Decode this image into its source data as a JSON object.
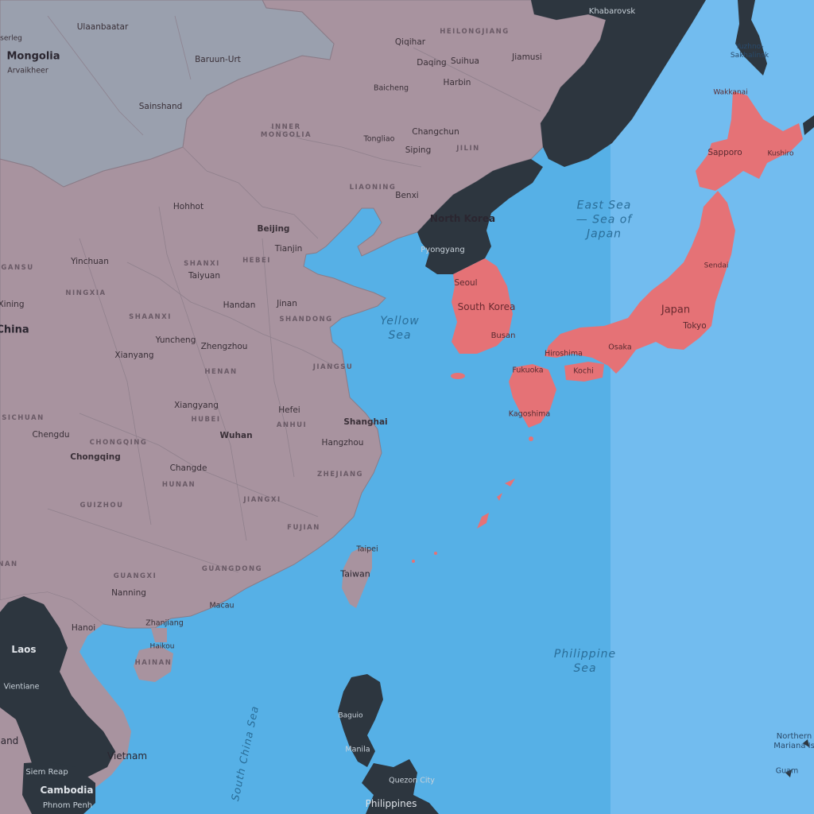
{
  "colors": {
    "sea": "#56b0e6",
    "sea_far": "#72bcef",
    "china": "#a8939f",
    "mongolia": "#9aa0ae",
    "dark_country": "#2d363f",
    "highlight": "#e57276",
    "border": "#8a7c88"
  },
  "labels": {
    "countries": [
      {
        "id": "mongolia",
        "text": "Mongolia"
      },
      {
        "id": "china",
        "text": "China"
      },
      {
        "id": "north-korea",
        "text": "North Korea"
      },
      {
        "id": "south-korea",
        "text": "South Korea"
      },
      {
        "id": "japan",
        "text": "Japan"
      },
      {
        "id": "taiwan",
        "text": "Taiwan"
      },
      {
        "id": "laos",
        "text": "Laos"
      },
      {
        "id": "vietnam",
        "text": "Vietnam"
      },
      {
        "id": "cambodia",
        "text": "Cambodia"
      },
      {
        "id": "thailand",
        "text": "and"
      },
      {
        "id": "philippines",
        "text": "Philippines"
      },
      {
        "id": "northern-mariana",
        "text": "Northern\nMariana Is"
      }
    ],
    "provinces": [
      {
        "id": "heilongjiang",
        "text": "HEILONGJIANG"
      },
      {
        "id": "inner-mongolia",
        "text": "INNER\nMONGOLIA"
      },
      {
        "id": "jilin",
        "text": "JILIN"
      },
      {
        "id": "liaoning",
        "text": "LIAONING"
      },
      {
        "id": "gansu",
        "text": "GANSU"
      },
      {
        "id": "ningxia",
        "text": "NINGXIA"
      },
      {
        "id": "shanxi",
        "text": "SHANXI"
      },
      {
        "id": "hebei",
        "text": "HEBEI"
      },
      {
        "id": "shaanxi",
        "text": "SHAANXI"
      },
      {
        "id": "shandong",
        "text": "SHANDONG"
      },
      {
        "id": "henan",
        "text": "HENAN"
      },
      {
        "id": "jiangsu",
        "text": "JIANGSU"
      },
      {
        "id": "sichuan",
        "text": "SICHUAN"
      },
      {
        "id": "hubei",
        "text": "HUBEI"
      },
      {
        "id": "anhui",
        "text": "ANHUI"
      },
      {
        "id": "chongqing",
        "text": "CHONGQING"
      },
      {
        "id": "hunan",
        "text": "HUNAN"
      },
      {
        "id": "zhejiang",
        "text": "ZHEJIANG"
      },
      {
        "id": "guizhou",
        "text": "GUIZHOU"
      },
      {
        "id": "jiangxi",
        "text": "JIANGXI"
      },
      {
        "id": "fujian",
        "text": "FUJIAN"
      },
      {
        "id": "guangxi",
        "text": "GUANGXI"
      },
      {
        "id": "guangdong",
        "text": "GUANGDONG"
      },
      {
        "id": "hainan",
        "text": "HAINAN"
      },
      {
        "id": "yunnan",
        "text": "NAN"
      }
    ],
    "cities": [
      {
        "id": "ulaanbaatar",
        "text": "Ulaanbaatar"
      },
      {
        "id": "erdenet",
        "text": "serleg"
      },
      {
        "id": "arvaikheer",
        "text": "Arvaikheer"
      },
      {
        "id": "baruun-urt",
        "text": "Baruun-Urt"
      },
      {
        "id": "sainshand",
        "text": "Sainshand"
      },
      {
        "id": "qiqihar",
        "text": "Qiqihar"
      },
      {
        "id": "daqing",
        "text": "Daqing"
      },
      {
        "id": "suihua",
        "text": "Suihua"
      },
      {
        "id": "jiamusi",
        "text": "Jiamusi"
      },
      {
        "id": "harbin",
        "text": "Harbin"
      },
      {
        "id": "baicheng",
        "text": "Baicheng"
      },
      {
        "id": "changchun",
        "text": "Changchun"
      },
      {
        "id": "tongliao",
        "text": "Tongliao"
      },
      {
        "id": "siping",
        "text": "Siping"
      },
      {
        "id": "benxi",
        "text": "Benxi"
      },
      {
        "id": "hohhot",
        "text": "Hohhot"
      },
      {
        "id": "beijing",
        "text": "Beijing"
      },
      {
        "id": "tianjin",
        "text": "Tianjin"
      },
      {
        "id": "yinchuan",
        "text": "Yinchuan"
      },
      {
        "id": "taiyuan",
        "text": "Taiyuan"
      },
      {
        "id": "xining",
        "text": "Xining"
      },
      {
        "id": "handan",
        "text": "Handan"
      },
      {
        "id": "jinan",
        "text": "Jinan"
      },
      {
        "id": "xianyang",
        "text": "Xianyang"
      },
      {
        "id": "yuncheng",
        "text": "Yuncheng"
      },
      {
        "id": "zhengzhou",
        "text": "Zhengzhou"
      },
      {
        "id": "xiangyang",
        "text": "Xiangyang"
      },
      {
        "id": "hefei",
        "text": "Hefei"
      },
      {
        "id": "shanghai",
        "text": "Shanghai"
      },
      {
        "id": "chengdu",
        "text": "Chengdu"
      },
      {
        "id": "wuhan",
        "text": "Wuhan"
      },
      {
        "id": "hangzhou",
        "text": "Hangzhou"
      },
      {
        "id": "chongqing-city",
        "text": "Chongqing"
      },
      {
        "id": "changde",
        "text": "Changde"
      },
      {
        "id": "taipei",
        "text": "Taipei"
      },
      {
        "id": "nanning",
        "text": "Nanning"
      },
      {
        "id": "macau",
        "text": "Macau"
      },
      {
        "id": "zhanjiang",
        "text": "Zhanjiang"
      },
      {
        "id": "haikou",
        "text": "Haikou"
      },
      {
        "id": "hanoi",
        "text": "Hanoi"
      },
      {
        "id": "vientiane",
        "text": "Vientiane"
      },
      {
        "id": "siem-reap",
        "text": "Siem Reap"
      },
      {
        "id": "phnom-penh",
        "text": "Phnom Penh"
      },
      {
        "id": "pyongyang",
        "text": "Pyongyang"
      },
      {
        "id": "seoul",
        "text": "Seoul"
      },
      {
        "id": "busan",
        "text": "Busan"
      },
      {
        "id": "khabarovsk",
        "text": "Khabarovsk"
      },
      {
        "id": "yuzhno",
        "text": "Yuzhno-\nSakhalinsk"
      },
      {
        "id": "wakkanai",
        "text": "Wakkanai"
      },
      {
        "id": "sapporo",
        "text": "Sapporo"
      },
      {
        "id": "kushiro",
        "text": "Kushiro"
      },
      {
        "id": "sendai",
        "text": "Sendai"
      },
      {
        "id": "tokyo",
        "text": "Tokyo"
      },
      {
        "id": "osaka",
        "text": "Osaka"
      },
      {
        "id": "hiroshima",
        "text": "Hiroshima"
      },
      {
        "id": "kochi",
        "text": "Kochi"
      },
      {
        "id": "fukuoka",
        "text": "Fukuoka"
      },
      {
        "id": "kagoshima",
        "text": "Kagoshima"
      },
      {
        "id": "baguio",
        "text": "Baguio"
      },
      {
        "id": "manila",
        "text": "Manila"
      },
      {
        "id": "quezon",
        "text": "Quezon City"
      },
      {
        "id": "guam",
        "text": "Guam"
      }
    ],
    "seas": [
      {
        "id": "yellow-sea",
        "text": "Yellow\nSea"
      },
      {
        "id": "east-sea",
        "text": "East Sea\n— Sea of\nJapan"
      },
      {
        "id": "philippine-sea",
        "text": "Philippine\nSea"
      },
      {
        "id": "south-china-sea",
        "text": "South China Sea"
      }
    ]
  }
}
